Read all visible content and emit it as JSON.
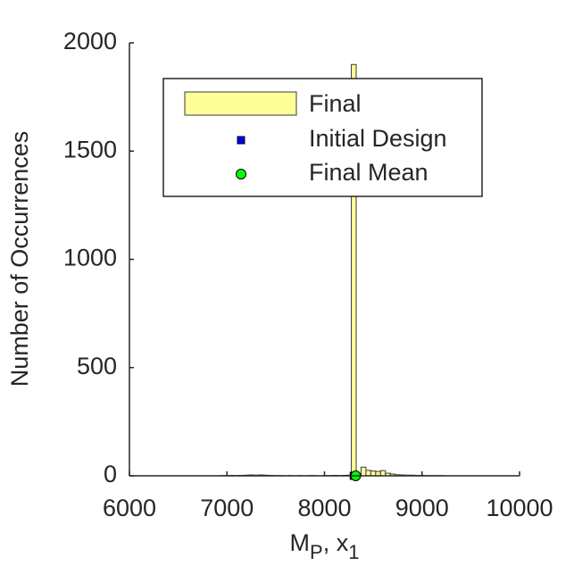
{
  "chart_data": {
    "type": "histogram",
    "name": "Final",
    "bins": [
      6925,
      6975,
      7025,
      7075,
      7125,
      7175,
      7225,
      7275,
      7325,
      7375,
      7425,
      7475,
      7525,
      7575,
      7625,
      7675,
      7725,
      7775,
      7825,
      7875,
      7925,
      7975,
      8025,
      8075,
      8125,
      8175,
      8225,
      8275,
      8325,
      8375,
      8425,
      8475,
      8525,
      8575,
      8625,
      8675,
      8725,
      8775,
      8825,
      8875,
      8925,
      8975,
      9025,
      9075,
      9125,
      9175,
      9225,
      9275,
      9325
    ],
    "counts": [
      1,
      1,
      2,
      1,
      2,
      3,
      4,
      3,
      4,
      3,
      2,
      1,
      1,
      0,
      1,
      0,
      1,
      0,
      1,
      1,
      0,
      1,
      1,
      2,
      1,
      2,
      3,
      1900,
      10,
      40,
      25,
      22,
      20,
      24,
      12,
      8,
      5,
      4,
      3,
      3,
      2,
      2,
      1,
      1,
      1,
      1,
      0,
      0
    ],
    "color": "#ffff99",
    "edgecolor": "#3a3a3a",
    "markers": [
      {
        "name": "Initial Design",
        "x": 8300,
        "y": 0,
        "color": "#0000ff",
        "marker": "square"
      },
      {
        "name": "Final Mean",
        "x": 8320,
        "y": 0,
        "color": "#00ff00",
        "marker": "circle"
      }
    ],
    "xlabel": [
      "M",
      "P",
      ", x",
      "1"
    ],
    "ylabel": "Number of Occurrences",
    "xlim": [
      6000,
      10000
    ],
    "ylim": [
      0,
      2000
    ],
    "xticks": [
      6000,
      7000,
      8000,
      9000,
      10000
    ],
    "yticks": [
      0,
      500,
      1000,
      1500,
      2000
    ],
    "legend": "top"
  }
}
